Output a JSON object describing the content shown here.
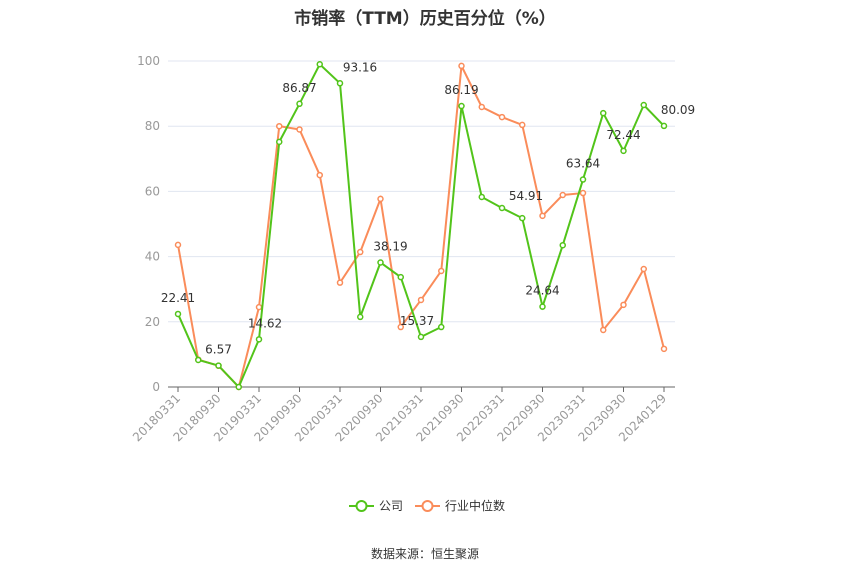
{
  "chart_data": {
    "type": "line",
    "title": "市销率（TTM）历史百分位（%）",
    "x_tick_labels": [
      "20180331",
      "20180930",
      "20190331",
      "20190930",
      "20200331",
      "20200930",
      "20210331",
      "20210930",
      "20220331",
      "20220930",
      "20230331",
      "20230930",
      "20240129"
    ],
    "y_ticks": [
      0,
      20,
      40,
      60,
      80,
      100
    ],
    "ylim": [
      0,
      100
    ],
    "grid": true,
    "legend_position": "bottom",
    "series": [
      {
        "name": "公司",
        "color": "#52c41a",
        "values": [
          22.41,
          8.3,
          6.57,
          0,
          14.62,
          75.2,
          86.87,
          99,
          93.16,
          21.5,
          38.19,
          33.7,
          15.37,
          18.4,
          86.19,
          58.3,
          54.91,
          51.8,
          24.64,
          43.5,
          63.64,
          84,
          72.44,
          86.5,
          80.09
        ],
        "labels": {
          "0": "22.41",
          "2": "6.57",
          "4": "14.62",
          "6": "86.87",
          "8": "93.16",
          "10": "38.19",
          "12": "15.37",
          "14": "86.19",
          "16": "54.91",
          "18": "24.64",
          "20": "63.64",
          "22": "72.44",
          "24": "80.09"
        }
      },
      {
        "name": "行业中位数",
        "color": "#fa8c5a",
        "values": [
          43.6,
          8.4,
          6.5,
          0,
          24.5,
          80,
          79,
          65,
          32,
          41.4,
          57.7,
          18.4,
          26.7,
          35.6,
          98.5,
          85.9,
          82.8,
          80.4,
          52.5,
          58.9,
          59.5,
          17.5,
          25.2,
          36.2,
          11.7
        ]
      }
    ]
  },
  "source": "数据来源：恒生聚源"
}
